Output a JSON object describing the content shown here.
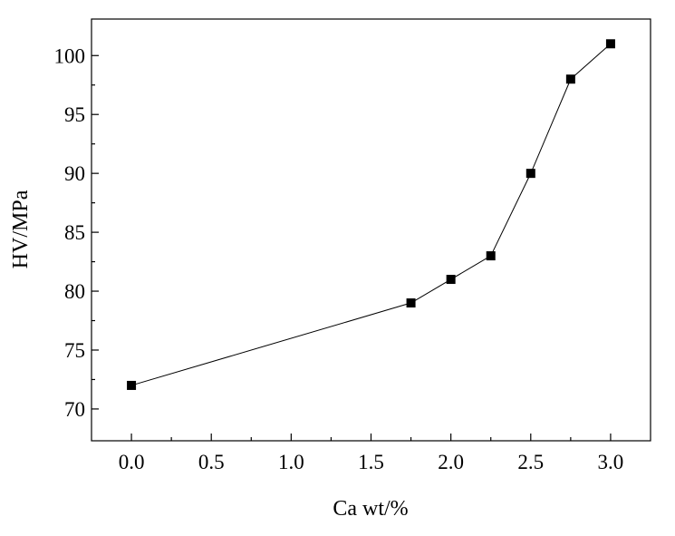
{
  "chart_data": {
    "type": "line",
    "title": "",
    "xlabel": "Ca wt/%",
    "ylabel": "HV/MPa",
    "xlim": [
      -0.25,
      3.25
    ],
    "ylim": [
      67.3,
      103.1
    ],
    "x_ticks": [
      0.0,
      0.5,
      1.0,
      1.5,
      2.0,
      2.5,
      3.0
    ],
    "x_tick_labels": [
      "0.0",
      "0.5",
      "1.0",
      "1.5",
      "2.0",
      "2.5",
      "3.0"
    ],
    "y_ticks": [
      70,
      75,
      80,
      85,
      90,
      95,
      100
    ],
    "y_tick_labels": [
      "70",
      "75",
      "80",
      "85",
      "90",
      "95",
      "100"
    ],
    "grid": false,
    "legend": "none",
    "series": [
      {
        "marker": "square",
        "color": "#000000",
        "x": [
          0.0,
          1.75,
          2.0,
          2.25,
          2.5,
          2.75,
          3.0
        ],
        "y": [
          72,
          79,
          81,
          83,
          90,
          98,
          101
        ]
      }
    ]
  }
}
